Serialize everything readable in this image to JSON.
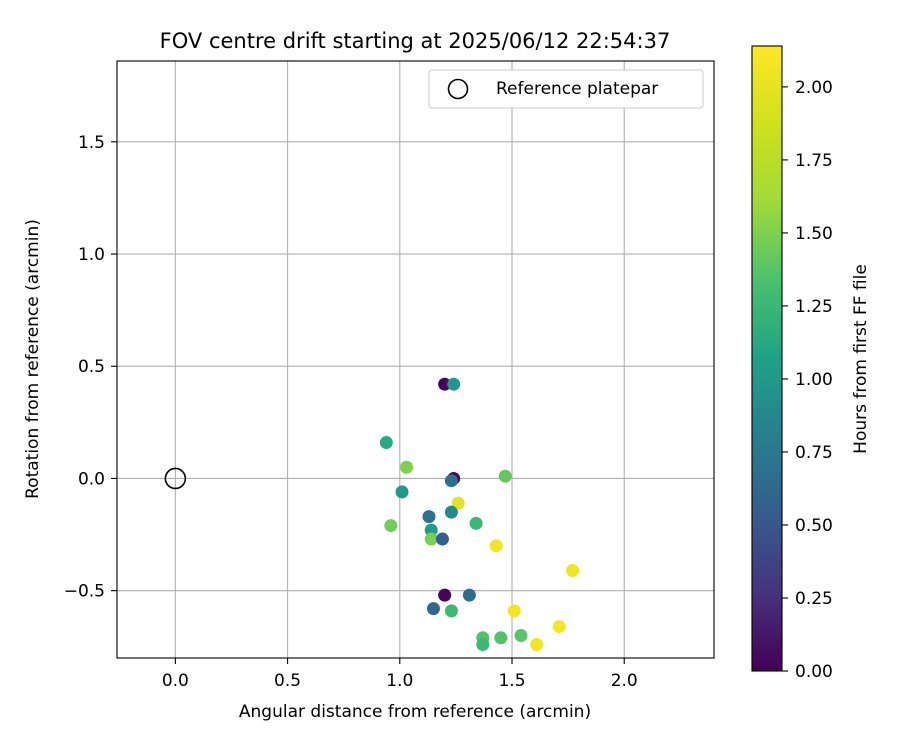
{
  "chart_data": {
    "type": "scatter",
    "title": "FOV centre drift starting at 2025/06/12 22:54:37",
    "xlabel": "Angular distance from reference (arcmin)",
    "ylabel": "Rotation from reference (arcmin)",
    "xlim": [
      -0.26,
      2.4
    ],
    "ylim": [
      -0.8,
      1.86
    ],
    "xticks": [
      0.0,
      0.5,
      1.0,
      1.5,
      2.0
    ],
    "xtick_labels": [
      "0.0",
      "0.5",
      "1.0",
      "1.5",
      "2.0"
    ],
    "yticks": [
      -0.5,
      0.0,
      0.5,
      1.0,
      1.5
    ],
    "ytick_labels": [
      "−0.5",
      "0.0",
      "0.5",
      "1.0",
      "1.5"
    ],
    "grid": true,
    "legend": {
      "position": "top-right",
      "entries": [
        "Reference platepar"
      ]
    },
    "reference_point": {
      "x": 0.0,
      "y": 0.0,
      "label": "Reference platepar"
    },
    "colorbar": {
      "label": "Hours from first FF file",
      "colormap": "viridis",
      "range": [
        0.0,
        2.14
      ],
      "ticks": [
        0.0,
        0.25,
        0.5,
        0.75,
        1.0,
        1.25,
        1.5,
        1.75,
        2.0
      ],
      "tick_labels": [
        "0.00",
        "0.25",
        "0.50",
        "0.75",
        "1.00",
        "1.25",
        "1.50",
        "1.75",
        "2.00"
      ]
    },
    "points": [
      {
        "x": 1.2,
        "y": 0.42,
        "hours": 0.02
      },
      {
        "x": 1.24,
        "y": 0.42,
        "hours": 1.12
      },
      {
        "x": 0.94,
        "y": 0.16,
        "hours": 1.3
      },
      {
        "x": 1.03,
        "y": 0.05,
        "hours": 1.72
      },
      {
        "x": 1.24,
        "y": 0.0,
        "hours": 0.05
      },
      {
        "x": 1.23,
        "y": -0.01,
        "hours": 0.8
      },
      {
        "x": 1.47,
        "y": 0.01,
        "hours": 1.62
      },
      {
        "x": 1.01,
        "y": -0.06,
        "hours": 1.15
      },
      {
        "x": 1.26,
        "y": -0.11,
        "hours": 2.05
      },
      {
        "x": 1.23,
        "y": -0.15,
        "hours": 1.0
      },
      {
        "x": 1.13,
        "y": -0.17,
        "hours": 0.8
      },
      {
        "x": 0.96,
        "y": -0.21,
        "hours": 1.68
      },
      {
        "x": 1.34,
        "y": -0.2,
        "hours": 1.45
      },
      {
        "x": 1.14,
        "y": -0.23,
        "hours": 1.2
      },
      {
        "x": 1.14,
        "y": -0.27,
        "hours": 1.7
      },
      {
        "x": 1.19,
        "y": -0.27,
        "hours": 0.65
      },
      {
        "x": 1.43,
        "y": -0.3,
        "hours": 2.1
      },
      {
        "x": 1.77,
        "y": -0.41,
        "hours": 2.1
      },
      {
        "x": 1.2,
        "y": -0.52,
        "hours": 0.03
      },
      {
        "x": 1.31,
        "y": -0.52,
        "hours": 0.75
      },
      {
        "x": 1.15,
        "y": -0.58,
        "hours": 0.7
      },
      {
        "x": 1.23,
        "y": -0.59,
        "hours": 1.45
      },
      {
        "x": 1.51,
        "y": -0.59,
        "hours": 2.1
      },
      {
        "x": 1.71,
        "y": -0.66,
        "hours": 2.12
      },
      {
        "x": 1.37,
        "y": -0.71,
        "hours": 1.55
      },
      {
        "x": 1.45,
        "y": -0.71,
        "hours": 1.55
      },
      {
        "x": 1.54,
        "y": -0.7,
        "hours": 1.58
      },
      {
        "x": 1.37,
        "y": -0.74,
        "hours": 1.45
      },
      {
        "x": 1.61,
        "y": -0.74,
        "hours": 2.1
      }
    ]
  }
}
